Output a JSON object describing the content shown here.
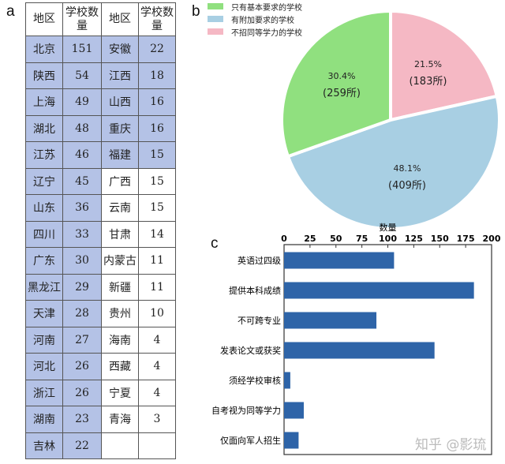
{
  "panels": {
    "a": "a",
    "b": "b",
    "c": "c"
  },
  "table": {
    "headers": [
      "地区",
      "学校数量",
      "地区",
      "学校数量"
    ],
    "rows": [
      [
        "北京",
        "151",
        "安徽",
        "22"
      ],
      [
        "陕西",
        "54",
        "江西",
        "18"
      ],
      [
        "上海",
        "49",
        "山西",
        "16"
      ],
      [
        "湖北",
        "48",
        "重庆",
        "16"
      ],
      [
        "江苏",
        "46",
        "福建",
        "15"
      ],
      [
        "辽宁",
        "45",
        "广西",
        "15"
      ],
      [
        "山东",
        "36",
        "云南",
        "15"
      ],
      [
        "四川",
        "33",
        "甘肃",
        "14"
      ],
      [
        "广东",
        "30",
        "内蒙古",
        "11"
      ],
      [
        "黑龙江",
        "29",
        "新疆",
        "11"
      ],
      [
        "天津",
        "28",
        "贵州",
        "10"
      ],
      [
        "河南",
        "27",
        "海南",
        "4"
      ],
      [
        "河北",
        "26",
        "西藏",
        "4"
      ],
      [
        "浙江",
        "26",
        "宁夏",
        "4"
      ],
      [
        "湖南",
        "23",
        "青海",
        "3"
      ],
      [
        "吉林",
        "22",
        "",
        ""
      ]
    ],
    "highlight_color": "#b4c2e6",
    "right_highlight_rows": 5
  },
  "legend": [
    {
      "label": "只有基本要求的学校",
      "color": "#90e07f"
    },
    {
      "label": "有附加要求的学校",
      "color": "#a8cfe3"
    },
    {
      "label": "不招同等学力的学校",
      "color": "#f5b8c4"
    }
  ],
  "pie": {
    "slices": [
      {
        "pct": "21.5%",
        "count": "(183所)",
        "color": "#f5b8c4"
      },
      {
        "pct": "48.1%",
        "count": "(409所)",
        "color": "#a8cfe3"
      },
      {
        "pct": "30.4%",
        "count": "(259所)",
        "color": "#90e07f"
      }
    ]
  },
  "bar": {
    "xlabel": "数量",
    "ticks": [
      "0",
      "25",
      "50",
      "75",
      "100",
      "125",
      "150",
      "175",
      "200"
    ],
    "color": "#2e64a8"
  },
  "watermark": "知乎 @影琉",
  "chart_data": [
    {
      "type": "table",
      "title": "a",
      "columns": [
        "地区",
        "学校数量",
        "地区",
        "学校数量"
      ],
      "rows": [
        [
          "北京",
          151,
          "安徽",
          22
        ],
        [
          "陕西",
          54,
          "江西",
          18
        ],
        [
          "上海",
          49,
          "山西",
          16
        ],
        [
          "湖北",
          48,
          "重庆",
          16
        ],
        [
          "江苏",
          46,
          "福建",
          15
        ],
        [
          "辽宁",
          45,
          "广西",
          15
        ],
        [
          "山东",
          36,
          "云南",
          15
        ],
        [
          "四川",
          33,
          "甘肃",
          14
        ],
        [
          "广东",
          30,
          "内蒙古",
          11
        ],
        [
          "黑龙江",
          29,
          "新疆",
          11
        ],
        [
          "天津",
          28,
          "贵州",
          10
        ],
        [
          "河南",
          27,
          "海南",
          4
        ],
        [
          "河北",
          26,
          "西藏",
          4
        ],
        [
          "浙江",
          26,
          "宁夏",
          4
        ],
        [
          "湖南",
          23,
          "青海",
          3
        ],
        [
          "吉林",
          22,
          "",
          null
        ]
      ]
    },
    {
      "type": "pie",
      "title": "b",
      "categories": [
        "只有基本要求的学校",
        "有附加要求的学校",
        "不招同等学力的学校"
      ],
      "values": [
        259,
        409,
        183
      ],
      "percentages": [
        30.4,
        48.1,
        21.5
      ],
      "legend_position": "top-left"
    },
    {
      "type": "bar",
      "orientation": "horizontal",
      "title": "c",
      "xlabel": "数量",
      "ylabel": "",
      "categories": [
        "英语过四级",
        "提供本科成绩",
        "不可跨专业",
        "发表论文或获奖",
        "须经学校审核",
        "自考视为同等学力",
        "仅面向军人招生"
      ],
      "values": [
        106,
        183,
        89,
        145,
        6,
        19,
        14
      ],
      "xlim": [
        0,
        200
      ],
      "xticks": [
        0,
        25,
        50,
        75,
        100,
        125,
        150,
        175,
        200
      ],
      "xaxis_position": "top",
      "grid": false
    }
  ]
}
